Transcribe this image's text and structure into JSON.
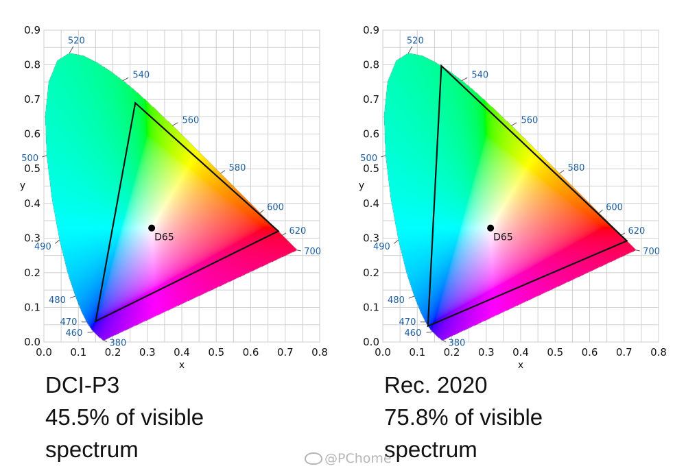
{
  "chart_data": [
    {
      "type": "scatter",
      "name": "DCI-P3",
      "xlabel": "x",
      "ylabel": "y",
      "xlim": [
        0.0,
        0.8
      ],
      "ylim": [
        0.0,
        0.9
      ],
      "x_ticks": [
        "0.0",
        "0.1",
        "0.2",
        "0.3",
        "0.4",
        "0.5",
        "0.6",
        "0.7",
        "0.8"
      ],
      "y_ticks": [
        "0.0",
        "0.1",
        "0.2",
        "0.3",
        "0.4",
        "0.5",
        "0.6",
        "0.7",
        "0.8",
        "0.9"
      ],
      "grid": true,
      "spectral_locus": [
        {
          "nm": "380",
          "x": 0.1741,
          "y": 0.005
        },
        {
          "nm": "460",
          "x": 0.144,
          "y": 0.0297
        },
        {
          "nm": "470",
          "x": 0.1241,
          "y": 0.0578
        },
        {
          "nm": "480",
          "x": 0.0913,
          "y": 0.1327
        },
        {
          "nm": "490",
          "x": 0.0454,
          "y": 0.295
        },
        {
          "nm": "500",
          "x": 0.0082,
          "y": 0.5384
        },
        {
          "nm": "520",
          "x": 0.0743,
          "y": 0.8338
        },
        {
          "nm": "540",
          "x": 0.2296,
          "y": 0.7543
        },
        {
          "nm": "560",
          "x": 0.3731,
          "y": 0.6245
        },
        {
          "nm": "580",
          "x": 0.5125,
          "y": 0.4866
        },
        {
          "nm": "600",
          "x": 0.627,
          "y": 0.3725
        },
        {
          "nm": "620",
          "x": 0.6915,
          "y": 0.3083
        },
        {
          "nm": "700",
          "x": 0.7347,
          "y": 0.2653
        }
      ],
      "gamut": [
        {
          "x": 0.68,
          "y": 0.32
        },
        {
          "x": 0.265,
          "y": 0.69
        },
        {
          "x": 0.15,
          "y": 0.06
        }
      ],
      "white_point": {
        "label": "D65",
        "x": 0.3127,
        "y": 0.329
      },
      "caption": [
        "DCI-P3",
        "45.5% of visible",
        "spectrum"
      ]
    },
    {
      "type": "scatter",
      "name": "Rec. 2020",
      "xlabel": "x",
      "ylabel": "y",
      "xlim": [
        0.0,
        0.8
      ],
      "ylim": [
        0.0,
        0.9
      ],
      "x_ticks": [
        "0.0",
        "0.1",
        "0.2",
        "0.3",
        "0.4",
        "0.5",
        "0.6",
        "0.7",
        "0.8"
      ],
      "y_ticks": [
        "0.0",
        "0.1",
        "0.2",
        "0.3",
        "0.4",
        "0.5",
        "0.6",
        "0.7",
        "0.8",
        "0.9"
      ],
      "grid": true,
      "spectral_locus": [
        {
          "nm": "380",
          "x": 0.1741,
          "y": 0.005
        },
        {
          "nm": "460",
          "x": 0.144,
          "y": 0.0297
        },
        {
          "nm": "470",
          "x": 0.1241,
          "y": 0.0578
        },
        {
          "nm": "480",
          "x": 0.0913,
          "y": 0.1327
        },
        {
          "nm": "490",
          "x": 0.0454,
          "y": 0.295
        },
        {
          "nm": "500",
          "x": 0.0082,
          "y": 0.5384
        },
        {
          "nm": "520",
          "x": 0.0743,
          "y": 0.8338
        },
        {
          "nm": "540",
          "x": 0.2296,
          "y": 0.7543
        },
        {
          "nm": "560",
          "x": 0.3731,
          "y": 0.6245
        },
        {
          "nm": "580",
          "x": 0.5125,
          "y": 0.4866
        },
        {
          "nm": "600",
          "x": 0.627,
          "y": 0.3725
        },
        {
          "nm": "620",
          "x": 0.6915,
          "y": 0.3083
        },
        {
          "nm": "700",
          "x": 0.7347,
          "y": 0.2653
        }
      ],
      "gamut": [
        {
          "x": 0.708,
          "y": 0.292
        },
        {
          "x": 0.17,
          "y": 0.797
        },
        {
          "x": 0.131,
          "y": 0.046
        }
      ],
      "white_point": {
        "label": "D65",
        "x": 0.3127,
        "y": 0.329
      },
      "caption": [
        "Rec. 2020",
        "75.8% of visible",
        "spectrum"
      ]
    }
  ],
  "watermark": "@PChome",
  "colors": {
    "grid": "#cfcfcf",
    "gamut_line": "#111111",
    "wavelength_label": "#1d5fa0",
    "white_point": "#000000"
  }
}
